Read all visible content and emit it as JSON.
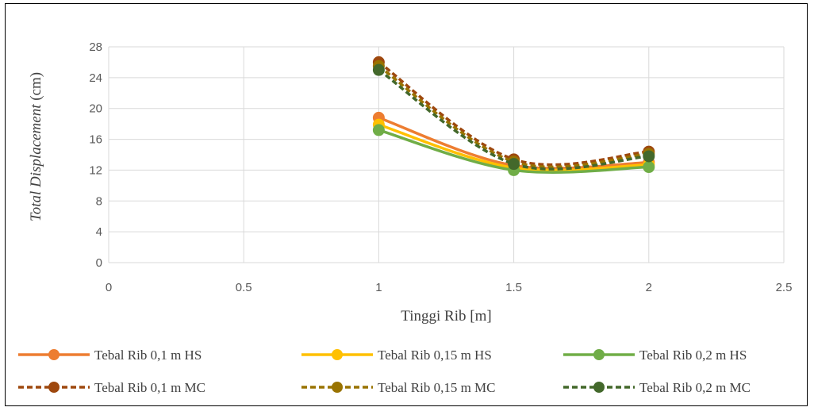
{
  "chart_data": {
    "type": "line",
    "xlabel": "Tinggi Rib [m]",
    "ylabel_italic": "Total Displacement",
    "ylabel_unit": " (cm)",
    "xlim": [
      0,
      2.5
    ],
    "ylim": [
      0,
      28
    ],
    "x_ticks": [
      "0",
      "0.5",
      "1",
      "1.5",
      "2",
      "2.5"
    ],
    "x_tick_values": [
      0,
      0.5,
      1,
      1.5,
      2,
      2.5
    ],
    "y_ticks": [
      "0",
      "4",
      "8",
      "12",
      "16",
      "20",
      "24",
      "28"
    ],
    "y_tick_values": [
      0,
      4,
      8,
      12,
      16,
      20,
      24,
      28
    ],
    "grid": "vertical and horizontal",
    "legend_position": "bottom",
    "x": [
      1,
      1.5,
      2
    ],
    "series": [
      {
        "name": "Tebal Rib 0,1 m HS",
        "values": [
          18.8,
          12.6,
          13.0
        ],
        "color": "#ED7D31",
        "dashed": false
      },
      {
        "name": "Tebal Rib 0,15 m HS",
        "values": [
          17.9,
          12.3,
          12.7
        ],
        "color": "#FFC000",
        "dashed": false
      },
      {
        "name": "Tebal Rib 0,2 m HS",
        "values": [
          17.2,
          12.0,
          12.4
        ],
        "color": "#70AD47",
        "dashed": false
      },
      {
        "name": "Tebal Rib 0,1 m MC",
        "values": [
          26.0,
          13.4,
          14.4
        ],
        "color": "#9E480E",
        "dashed": true
      },
      {
        "name": "Tebal Rib 0,15 m MC",
        "values": [
          25.5,
          13.1,
          14.1
        ],
        "color": "#997300",
        "dashed": true
      },
      {
        "name": "Tebal Rib 0,2 m MC",
        "values": [
          25.0,
          12.8,
          13.8
        ],
        "color": "#43682B",
        "dashed": true
      }
    ]
  }
}
